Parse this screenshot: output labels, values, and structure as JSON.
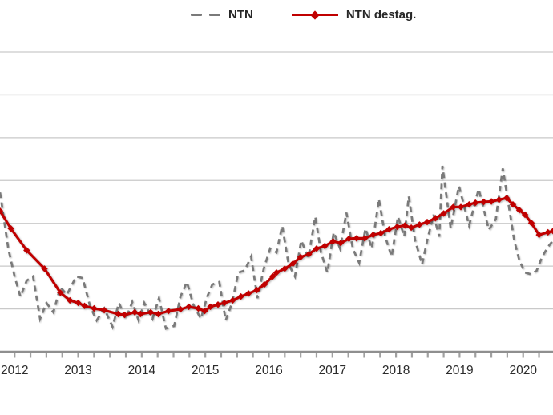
{
  "legend": {
    "items": [
      {
        "label": "NTN",
        "color": "#7a7a7a",
        "style": "dashed"
      },
      {
        "label": "NTN destag.",
        "color": "#C00000",
        "style": "solid-diamond"
      }
    ]
  },
  "colors": {
    "ntn_line": "#7a7a7a",
    "ntn_destag_line": "#C00000",
    "gridline": "#c9c9c9",
    "axis": "#8f8f8f",
    "tick": "#a0a0a0",
    "label_text": "#2b2b2b"
  },
  "chart_data": {
    "type": "line",
    "title": "",
    "xlabel": "",
    "ylabel": "",
    "grid": "horizontal",
    "legend_position": "top-center",
    "x_axis": {
      "range": [
        2011.77,
        2020.47
      ],
      "tick_years": [
        2012,
        2013,
        2014,
        2015,
        2016,
        2017,
        2018,
        2019,
        2020
      ],
      "minor_tick_interval_years": 0.25,
      "y_labels_visible": false
    },
    "y_axis": {
      "range": [
        0,
        7
      ],
      "gridline_interval": 1,
      "labels_visible": false
    },
    "series": [
      {
        "name": "NTN",
        "style": "dashed",
        "marker": "none",
        "color": "#7a7a7a",
        "points": [
          [
            2011.77,
            3.72
          ],
          [
            2011.9,
            2.41
          ],
          [
            2012.0,
            1.76
          ],
          [
            2012.09,
            1.29
          ],
          [
            2012.19,
            1.66
          ],
          [
            2012.29,
            1.76
          ],
          [
            2012.4,
            0.77
          ],
          [
            2012.5,
            1.14
          ],
          [
            2012.61,
            0.92
          ],
          [
            2012.72,
            1.51
          ],
          [
            2012.82,
            1.33
          ],
          [
            2012.97,
            1.76
          ],
          [
            2013.07,
            1.72
          ],
          [
            2013.19,
            1.05
          ],
          [
            2013.29,
            0.73
          ],
          [
            2013.41,
            1.01
          ],
          [
            2013.54,
            0.58
          ],
          [
            2013.64,
            1.14
          ],
          [
            2013.75,
            0.77
          ],
          [
            2013.85,
            1.16
          ],
          [
            2013.95,
            0.73
          ],
          [
            2014.04,
            1.14
          ],
          [
            2014.17,
            0.77
          ],
          [
            2014.27,
            1.25
          ],
          [
            2014.38,
            0.54
          ],
          [
            2014.51,
            0.6
          ],
          [
            2014.61,
            1.29
          ],
          [
            2014.71,
            1.63
          ],
          [
            2014.81,
            1.1
          ],
          [
            2014.93,
            0.77
          ],
          [
            2015.03,
            1.29
          ],
          [
            2015.11,
            1.57
          ],
          [
            2015.22,
            1.63
          ],
          [
            2015.32,
            0.73
          ],
          [
            2015.42,
            1.14
          ],
          [
            2015.52,
            1.85
          ],
          [
            2015.62,
            1.9
          ],
          [
            2015.72,
            2.22
          ],
          [
            2015.82,
            1.25
          ],
          [
            2015.92,
            1.94
          ],
          [
            2016.02,
            2.41
          ],
          [
            2016.12,
            2.32
          ],
          [
            2016.21,
            2.94
          ],
          [
            2016.31,
            2.04
          ],
          [
            2016.41,
            1.76
          ],
          [
            2016.51,
            2.6
          ],
          [
            2016.62,
            2.19
          ],
          [
            2016.73,
            3.16
          ],
          [
            2016.82,
            2.32
          ],
          [
            2016.92,
            1.85
          ],
          [
            2017.02,
            2.79
          ],
          [
            2017.12,
            2.41
          ],
          [
            2017.22,
            3.25
          ],
          [
            2017.32,
            2.41
          ],
          [
            2017.42,
            2.08
          ],
          [
            2017.52,
            2.88
          ],
          [
            2017.62,
            2.41
          ],
          [
            2017.73,
            3.57
          ],
          [
            2017.83,
            2.69
          ],
          [
            2017.93,
            2.22
          ],
          [
            2018.03,
            3.16
          ],
          [
            2018.13,
            2.69
          ],
          [
            2018.2,
            3.63
          ],
          [
            2018.3,
            2.6
          ],
          [
            2018.41,
            2.04
          ],
          [
            2018.49,
            2.6
          ],
          [
            2018.59,
            3.2
          ],
          [
            2018.68,
            2.69
          ],
          [
            2018.73,
            4.34
          ],
          [
            2018.86,
            2.88
          ],
          [
            2018.99,
            3.87
          ],
          [
            2019.15,
            2.95
          ],
          [
            2019.3,
            3.8
          ],
          [
            2019.46,
            2.85
          ],
          [
            2019.57,
            3.1
          ],
          [
            2019.68,
            4.28
          ],
          [
            2019.77,
            3.44
          ],
          [
            2019.86,
            2.6
          ],
          [
            2019.94,
            2.13
          ],
          [
            2020.03,
            1.85
          ],
          [
            2020.12,
            1.81
          ],
          [
            2020.21,
            1.89
          ],
          [
            2020.3,
            2.22
          ],
          [
            2020.39,
            2.45
          ],
          [
            2020.47,
            2.6
          ]
        ]
      },
      {
        "name": "NTN destag.",
        "style": "solid",
        "marker": "diamond",
        "color": "#C00000",
        "points": [
          [
            2011.77,
            3.29
          ],
          [
            2011.94,
            2.88
          ],
          [
            2012.19,
            2.37
          ],
          [
            2012.47,
            1.94
          ],
          [
            2012.72,
            1.38
          ],
          [
            2012.87,
            1.2
          ],
          [
            2013.0,
            1.14
          ],
          [
            2013.1,
            1.07
          ],
          [
            2013.25,
            1.01
          ],
          [
            2013.41,
            0.97
          ],
          [
            2013.63,
            0.88
          ],
          [
            2013.73,
            0.86
          ],
          [
            2013.89,
            0.92
          ],
          [
            2013.98,
            0.88
          ],
          [
            2014.14,
            0.92
          ],
          [
            2014.26,
            0.88
          ],
          [
            2014.42,
            0.95
          ],
          [
            2014.61,
            0.99
          ],
          [
            2014.74,
            1.05
          ],
          [
            2014.89,
            1.01
          ],
          [
            2014.99,
            0.95
          ],
          [
            2015.08,
            1.05
          ],
          [
            2015.2,
            1.1
          ],
          [
            2015.3,
            1.14
          ],
          [
            2015.43,
            1.2
          ],
          [
            2015.56,
            1.29
          ],
          [
            2015.68,
            1.36
          ],
          [
            2015.81,
            1.44
          ],
          [
            2015.93,
            1.57
          ],
          [
            2016.06,
            1.76
          ],
          [
            2016.12,
            1.85
          ],
          [
            2016.25,
            1.94
          ],
          [
            2016.38,
            2.06
          ],
          [
            2016.5,
            2.21
          ],
          [
            2016.63,
            2.28
          ],
          [
            2016.75,
            2.41
          ],
          [
            2016.88,
            2.47
          ],
          [
            2017.01,
            2.58
          ],
          [
            2017.13,
            2.54
          ],
          [
            2017.26,
            2.64
          ],
          [
            2017.38,
            2.65
          ],
          [
            2017.51,
            2.65
          ],
          [
            2017.64,
            2.73
          ],
          [
            2017.76,
            2.77
          ],
          [
            2017.89,
            2.86
          ],
          [
            2018.02,
            2.92
          ],
          [
            2018.14,
            2.95
          ],
          [
            2018.24,
            2.9
          ],
          [
            2018.37,
            2.97
          ],
          [
            2018.49,
            3.03
          ],
          [
            2018.62,
            3.12
          ],
          [
            2018.75,
            3.23
          ],
          [
            2018.9,
            3.38
          ],
          [
            2019.02,
            3.38
          ],
          [
            2019.15,
            3.44
          ],
          [
            2019.25,
            3.48
          ],
          [
            2019.38,
            3.5
          ],
          [
            2019.5,
            3.51
          ],
          [
            2019.62,
            3.55
          ],
          [
            2019.74,
            3.59
          ],
          [
            2019.84,
            3.44
          ],
          [
            2019.94,
            3.31
          ],
          [
            2020.03,
            3.2
          ],
          [
            2020.13,
            3.01
          ],
          [
            2020.25,
            2.73
          ],
          [
            2020.39,
            2.79
          ],
          [
            2020.47,
            2.82
          ]
        ]
      }
    ]
  }
}
